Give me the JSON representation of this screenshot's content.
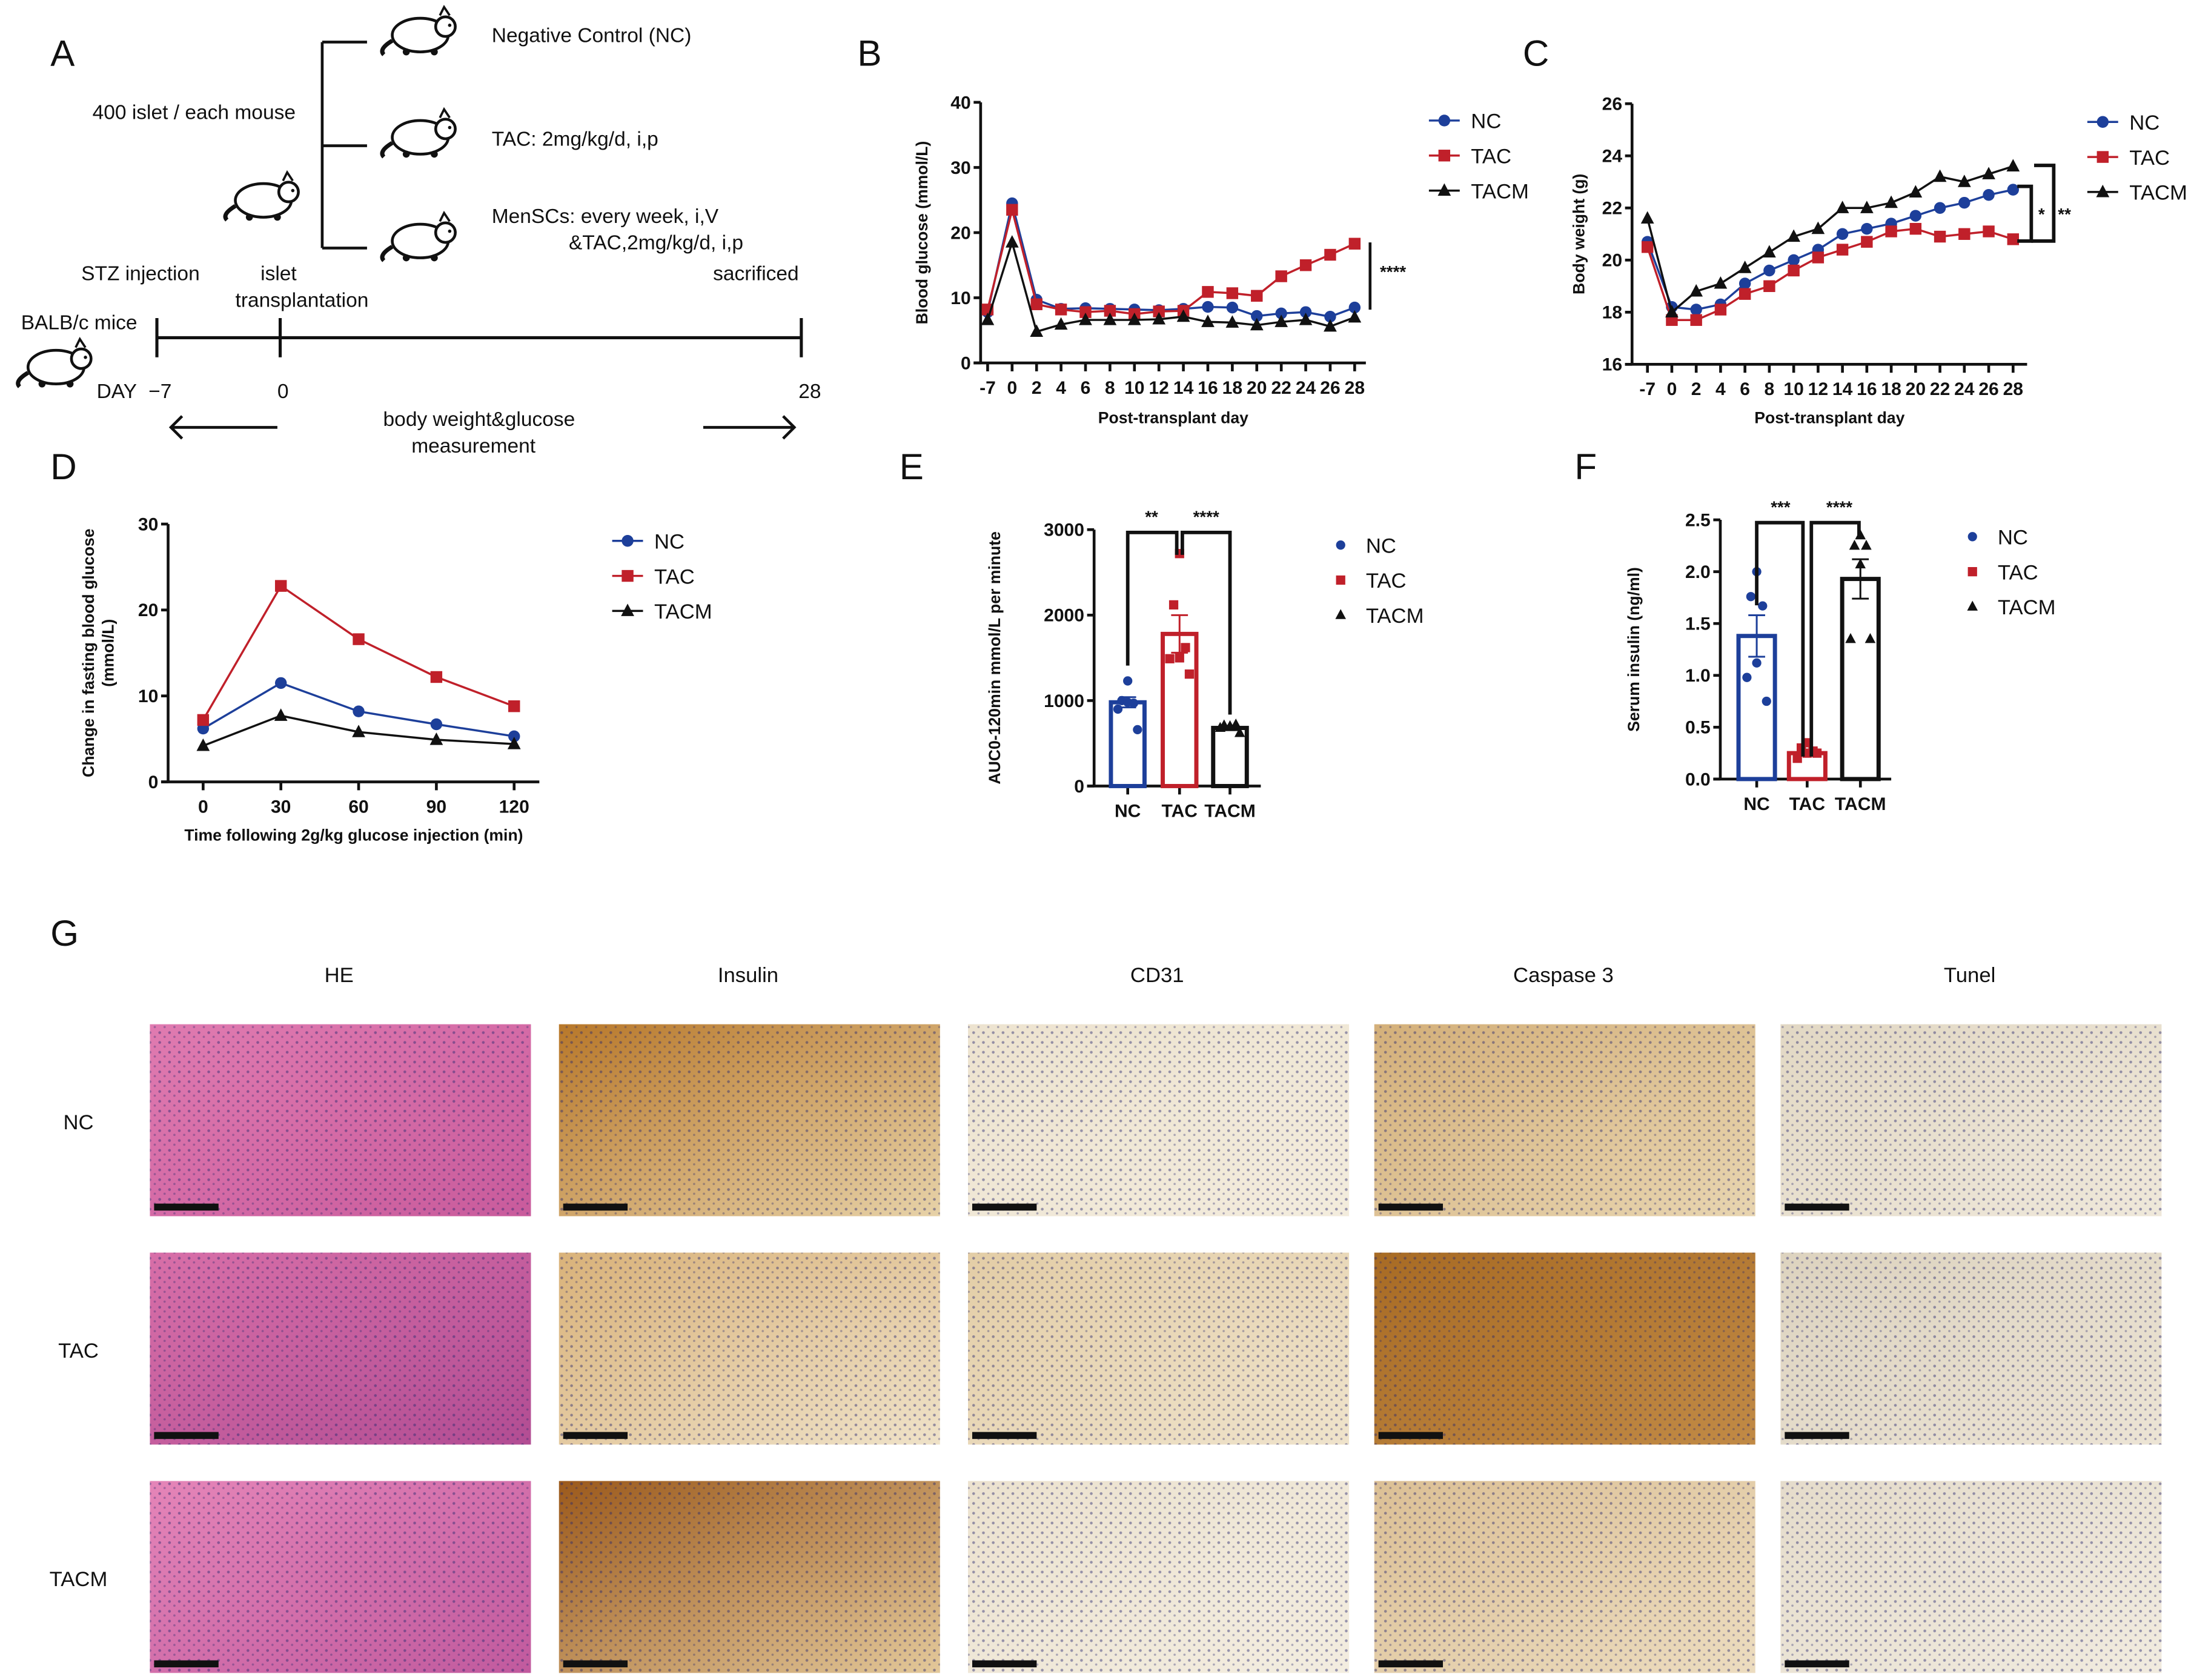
{
  "panel_labels": {
    "A": "A",
    "B": "B",
    "C": "C",
    "D": "D",
    "E": "E",
    "F": "F",
    "G": "G"
  },
  "schematic": {
    "islet_count": "400 islet / each mouse",
    "group_nc": "Negative Control (NC)",
    "group_tac": "TAC: 2mg/kg/d, i,p",
    "group_tacm_line1": "MenSCs: every week, i,V",
    "group_tacm_line2": "&TAC,2mg/kg/d, i,p",
    "stz": "STZ injection",
    "islet_line1": "islet",
    "islet_line2": "transplantation",
    "sacrificed": "sacrificed",
    "mice": "BALB/c mice",
    "day_label": "DAY",
    "day_start": "−7",
    "day_zero": "0",
    "day_end": "28",
    "measure_line1": "body weight&glucose",
    "measure_line2": "measurement"
  },
  "colors": {
    "NC": "#1d3f9a",
    "TAC": "#c0202a",
    "TACM": "#111111"
  },
  "chart_data": [
    {
      "id": "B",
      "type": "line",
      "title": "",
      "xlabel": "Post-transplant day",
      "ylabel": "Blood glucose (mmol/L)",
      "categories": [
        "-7",
        "0",
        "2",
        "4",
        "6",
        "8",
        "10",
        "12",
        "14",
        "16",
        "18",
        "20",
        "22",
        "24",
        "26",
        "28"
      ],
      "ylim": [
        0,
        40
      ],
      "yticks": [
        "0",
        "10",
        "20",
        "30",
        "40"
      ],
      "legend": "right",
      "series": [
        {
          "name": "NC",
          "marker": "circle",
          "values": [
            7.8,
            24.5,
            9.7,
            8.3,
            8.4,
            8.3,
            8.2,
            8.1,
            8.3,
            8.6,
            8.5,
            7.2,
            7.6,
            7.8,
            7.1,
            8.5
          ]
        },
        {
          "name": "TAC",
          "marker": "square",
          "values": [
            8.2,
            23.5,
            9.0,
            8.2,
            7.8,
            8.0,
            7.5,
            7.9,
            8.0,
            10.9,
            10.7,
            10.3,
            13.3,
            15.0,
            16.6,
            18.3
          ]
        },
        {
          "name": "TACM",
          "marker": "triangle",
          "values": [
            6.6,
            18.5,
            4.8,
            5.9,
            6.6,
            6.6,
            6.6,
            6.7,
            7.1,
            6.3,
            6.2,
            5.8,
            6.3,
            6.6,
            5.6,
            7.0
          ]
        }
      ],
      "significance": [
        "****"
      ]
    },
    {
      "id": "C",
      "type": "line",
      "title": "",
      "xlabel": "Post-transplant day",
      "ylabel": "Body weight (g)",
      "categories": [
        "-7",
        "0",
        "2",
        "4",
        "6",
        "8",
        "10",
        "12",
        "14",
        "16",
        "18",
        "20",
        "22",
        "24",
        "26",
        "28"
      ],
      "ylim": [
        16,
        26
      ],
      "yticks": [
        "16",
        "18",
        "20",
        "22",
        "24",
        "26"
      ],
      "legend": "right",
      "series": [
        {
          "name": "NC",
          "marker": "circle",
          "values": [
            20.7,
            18.2,
            18.1,
            18.3,
            19.1,
            19.6,
            20.0,
            20.4,
            21.0,
            21.2,
            21.4,
            21.7,
            22.0,
            22.2,
            22.5,
            22.7
          ]
        },
        {
          "name": "TAC",
          "marker": "square",
          "values": [
            20.5,
            17.7,
            17.7,
            18.1,
            18.7,
            19.0,
            19.6,
            20.1,
            20.4,
            20.7,
            21.1,
            21.2,
            20.9,
            21.0,
            21.1,
            20.8
          ]
        },
        {
          "name": "TACM",
          "marker": "triangle",
          "values": [
            21.6,
            18.0,
            18.8,
            19.1,
            19.7,
            20.3,
            20.9,
            21.2,
            22.0,
            22.0,
            22.2,
            22.6,
            23.2,
            23.0,
            23.3,
            23.6
          ]
        }
      ],
      "significance": [
        "*",
        "**"
      ]
    },
    {
      "id": "D",
      "type": "line",
      "title": "",
      "xlabel": "Time following 2g/kg glucose injection  (min)",
      "ylabel_line1": "Change in fasting blood glucose",
      "ylabel_line2": "(mmol/L)",
      "categories": [
        "0",
        "30",
        "60",
        "90",
        "120"
      ],
      "ylim": [
        0,
        30
      ],
      "yticks": [
        "0",
        "10",
        "20",
        "30"
      ],
      "legend": "right",
      "series": [
        {
          "name": "NC",
          "marker": "circle",
          "values": [
            6.2,
            11.5,
            8.2,
            6.7,
            5.3
          ]
        },
        {
          "name": "TAC",
          "marker": "square",
          "values": [
            7.2,
            22.8,
            16.6,
            12.2,
            8.8
          ]
        },
        {
          "name": "TACM",
          "marker": "triangle",
          "values": [
            4.2,
            7.7,
            5.8,
            4.9,
            4.4
          ]
        }
      ]
    },
    {
      "id": "E",
      "type": "bar",
      "title": "",
      "xlabel": "",
      "ylabel": "AUC0-120min mmol/L per minute",
      "categories": [
        "NC",
        "TAC",
        "TACM"
      ],
      "ylim": [
        0,
        3000
      ],
      "yticks": [
        "0",
        "1000",
        "2000",
        "3000"
      ],
      "legend": "right",
      "values": [
        980,
        1780,
        680
      ],
      "sem": [
        60,
        220,
        25
      ],
      "points": [
        [
          1230,
          1000,
          970,
          980,
          900,
          660
        ],
        [
          2720,
          2120,
          1620,
          1500,
          1490,
          1310
        ],
        [
          700,
          710,
          720,
          690,
          680,
          620
        ]
      ],
      "markers": [
        "circle",
        "square",
        "triangle"
      ],
      "significance": [
        "**",
        "****"
      ]
    },
    {
      "id": "F",
      "type": "bar",
      "title": "",
      "xlabel": "",
      "ylabel": "Serum insulin (ng/ml)",
      "categories": [
        "NC",
        "TAC",
        "TACM"
      ],
      "ylim": [
        0,
        2.5
      ],
      "yticks": [
        "0.0",
        "0.5",
        "1.0",
        "1.5",
        "2.0",
        "2.5"
      ],
      "legend": "right",
      "values": [
        1.38,
        0.25,
        1.93
      ],
      "sem": [
        0.2,
        0.02,
        0.19
      ],
      "points": [
        [
          2.0,
          1.76,
          1.67,
          1.12,
          0.98,
          0.75
        ],
        [
          0.35,
          0.3,
          0.27,
          0.25,
          0.2,
          0.25
        ],
        [
          2.35,
          2.25,
          2.25,
          2.07,
          1.35,
          1.35
        ]
      ],
      "markers": [
        "circle",
        "square",
        "triangle"
      ],
      "significance": [
        "***",
        "****"
      ]
    }
  ],
  "histology": {
    "columns": [
      "HE",
      "Insulin",
      "CD31",
      "Caspase 3",
      "Tunel"
    ],
    "rows": [
      "NC",
      "TAC",
      "TACM"
    ]
  }
}
